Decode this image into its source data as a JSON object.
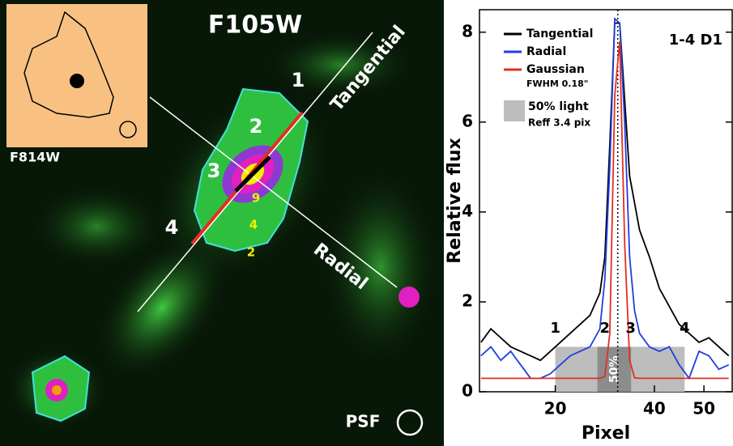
{
  "image": {
    "title": "F105W",
    "inset_label": "F814W",
    "tangential_label": "Tangential",
    "radial_label": "Radial",
    "points": [
      "1",
      "2",
      "3",
      "4"
    ],
    "contour_levels": [
      "9",
      "4",
      "2"
    ],
    "psf_label": "PSF"
  },
  "chart_data": {
    "type": "line",
    "corner_label": "1-4 D1",
    "xlabel": "Pixel",
    "ylabel": "Relative flux",
    "x": [
      5,
      7,
      9,
      11,
      13,
      15,
      17,
      19,
      21,
      23,
      25,
      27,
      29,
      30,
      31,
      32,
      33,
      34,
      35,
      36,
      37,
      39,
      41,
      43,
      45,
      47,
      49,
      51,
      53,
      55
    ],
    "series": [
      {
        "name": "Tangential",
        "color": "#000000",
        "values": [
          1.1,
          1.4,
          1.2,
          1.0,
          0.9,
          0.8,
          0.7,
          0.9,
          1.1,
          1.3,
          1.5,
          1.7,
          2.2,
          3.0,
          5.5,
          8.2,
          8.2,
          6.5,
          4.8,
          4.2,
          3.6,
          3.0,
          2.3,
          1.9,
          1.5,
          1.3,
          1.1,
          1.2,
          1.0,
          0.8
        ]
      },
      {
        "name": "Radial",
        "color": "#1f3fe0",
        "values": [
          0.8,
          1.0,
          0.7,
          0.9,
          0.6,
          0.3,
          0.3,
          0.4,
          0.6,
          0.8,
          0.9,
          1.0,
          1.4,
          2.5,
          5.0,
          8.3,
          8.2,
          6.0,
          3.0,
          1.8,
          1.3,
          1.0,
          0.9,
          1.0,
          0.6,
          0.3,
          0.9,
          0.8,
          0.5,
          0.6
        ]
      },
      {
        "name": "Gaussian",
        "color": "#e03020",
        "values": [
          0.3,
          0.3,
          0.3,
          0.3,
          0.3,
          0.3,
          0.3,
          0.3,
          0.3,
          0.3,
          0.3,
          0.3,
          0.3,
          0.34,
          1.3,
          6.6,
          7.8,
          3.3,
          0.7,
          0.31,
          0.3,
          0.3,
          0.3,
          0.3,
          0.3,
          0.3,
          0.3,
          0.3,
          0.3,
          0.3
        ]
      }
    ],
    "fwhm_note": "FWHM 0.18\"",
    "regions": [
      {
        "name": "50% light",
        "note": "Reff 3.4 pix",
        "x": [
          20,
          46.1
        ],
        "y": [
          0,
          1
        ],
        "color": "#bdbdbd"
      },
      {
        "label": "50%",
        "x": [
          28.5,
          35.3
        ],
        "y": [
          0,
          1
        ],
        "color": "#8c8c8c"
      }
    ],
    "vline": 32.6,
    "annotations": [
      {
        "text": "1",
        "x": 20,
        "y": 1.3
      },
      {
        "text": "2",
        "x": 30,
        "y": 1.3
      },
      {
        "text": "3",
        "x": 35.2,
        "y": 1.3
      },
      {
        "text": "4",
        "x": 46.1,
        "y": 1.3
      }
    ],
    "xlim": [
      4.7,
      55.7
    ],
    "ylim": [
      0,
      8.5
    ],
    "xticks": [
      20,
      40,
      50
    ],
    "yticks": [
      0,
      2,
      4,
      6,
      8
    ]
  }
}
